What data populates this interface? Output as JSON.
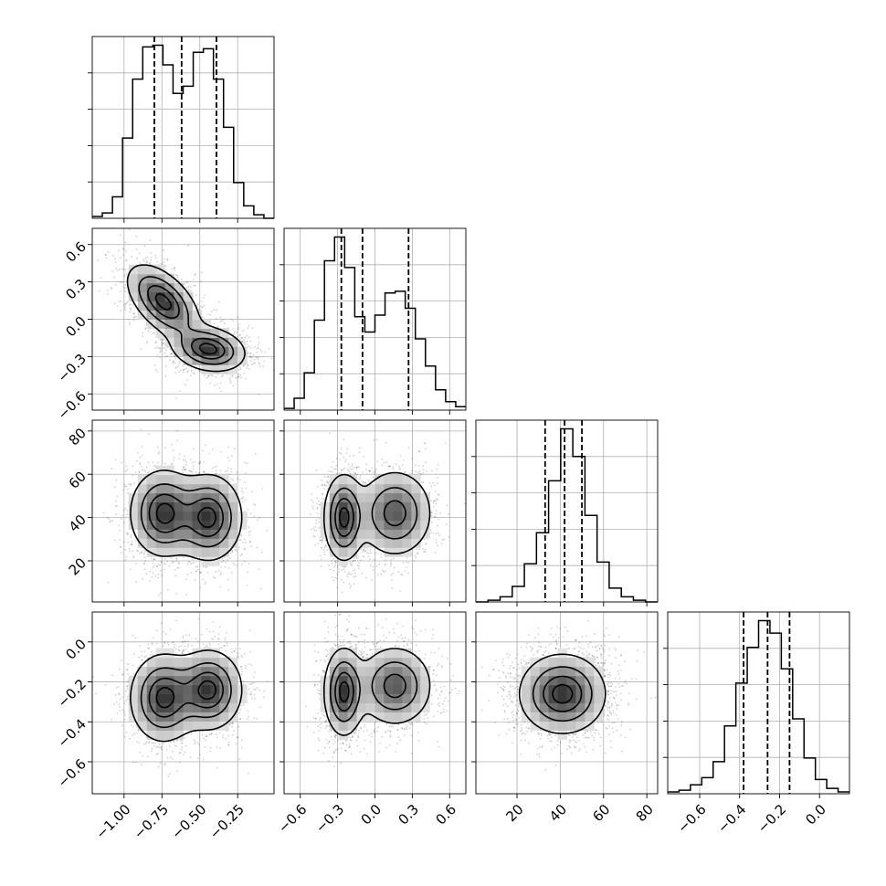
{
  "chart_data": {
    "type": "corner",
    "parameters": [
      {
        "ticks": [
          -1.0,
          -0.75,
          -0.5,
          -0.25
        ],
        "tick_labels": [
          "−1.00",
          "−0.75",
          "−0.50",
          "−0.25"
        ],
        "range": [
          -1.21,
          -0.01
        ],
        "quantiles": [
          -0.8,
          -0.62,
          -0.39
        ]
      },
      {
        "ticks": [
          -0.6,
          -0.3,
          0.0,
          0.3,
          0.6
        ],
        "tick_labels": [
          "−0.6",
          "−0.3",
          "0.0",
          "0.3",
          "0.6"
        ],
        "range": [
          -0.73,
          0.73
        ],
        "quantiles": [
          -0.27,
          -0.1,
          0.27
        ]
      },
      {
        "ticks": [
          20,
          40,
          60,
          80
        ],
        "tick_labels": [
          "20",
          "40",
          "60",
          "80"
        ],
        "range": [
          1,
          85
        ],
        "quantiles": [
          33,
          42,
          50
        ]
      },
      {
        "ticks": [
          -0.6,
          -0.4,
          -0.2,
          0.0
        ],
        "tick_labels": [
          "−0.6",
          "−0.4",
          "−0.2",
          "0.0"
        ],
        "range": [
          -0.76,
          0.15
        ],
        "quantiles": [
          -0.38,
          -0.26,
          -0.15
        ]
      }
    ],
    "histograms": [
      {
        "parameter": 0,
        "counts": [
          1,
          3,
          12,
          45,
          78,
          96,
          97,
          86,
          70,
          74,
          93,
          95,
          78,
          51,
          20,
          7,
          2,
          0
        ]
      },
      {
        "parameter": 1,
        "counts": [
          1,
          7,
          22,
          53,
          88,
          102,
          84,
          55,
          46,
          56,
          69,
          70,
          60,
          42,
          26,
          12,
          5,
          2
        ]
      },
      {
        "parameter": 2,
        "counts": [
          0,
          1,
          3,
          9,
          22,
          40,
          70,
          100,
          84,
          50,
          23,
          8,
          3,
          1,
          0
        ]
      },
      {
        "parameter": 3,
        "counts": [
          1,
          2,
          5,
          9,
          18,
          38,
          62,
          82,
          97,
          90,
          70,
          42,
          20,
          8,
          3,
          1
        ]
      }
    ],
    "densities": [
      {
        "x": 0,
        "y": 1,
        "modes": [
          {
            "mx": -0.74,
            "my": 0.14,
            "sx": 0.12,
            "sy": 0.15,
            "rho": -0.55,
            "w": 0.5
          },
          {
            "mx": -0.44,
            "my": -0.24,
            "sx": 0.12,
            "sy": 0.09,
            "rho": -0.2,
            "w": 0.5
          }
        ]
      },
      {
        "x": 0,
        "y": 2,
        "modes": [
          {
            "mx": -0.74,
            "my": 42,
            "sx": 0.11,
            "sy": 10,
            "rho": 0,
            "w": 0.5
          },
          {
            "mx": -0.44,
            "my": 40,
            "sx": 0.11,
            "sy": 10,
            "rho": 0,
            "w": 0.5
          }
        ]
      },
      {
        "x": 1,
        "y": 2,
        "modes": [
          {
            "mx": -0.25,
            "my": 40,
            "sx": 0.08,
            "sy": 10,
            "rho": 0,
            "w": 0.55
          },
          {
            "mx": 0.16,
            "my": 42,
            "sx": 0.15,
            "sy": 10,
            "rho": 0,
            "w": 0.45
          }
        ]
      },
      {
        "x": 0,
        "y": 3,
        "modes": [
          {
            "mx": -0.74,
            "my": -0.28,
            "sx": 0.11,
            "sy": 0.11,
            "rho": 0,
            "w": 0.5
          },
          {
            "mx": -0.44,
            "my": -0.24,
            "sx": 0.11,
            "sy": 0.1,
            "rho": 0,
            "w": 0.5
          }
        ]
      },
      {
        "x": 1,
        "y": 3,
        "modes": [
          {
            "mx": -0.25,
            "my": -0.25,
            "sx": 0.08,
            "sy": 0.11,
            "rho": 0,
            "w": 0.55
          },
          {
            "mx": 0.16,
            "my": -0.22,
            "sx": 0.15,
            "sy": 0.1,
            "rho": 0,
            "w": 0.45
          }
        ]
      },
      {
        "x": 2,
        "y": 3,
        "modes": [
          {
            "mx": 41,
            "my": -0.26,
            "sx": 10,
            "sy": 0.1,
            "rho": 0,
            "w": 1.0
          }
        ]
      }
    ],
    "grid": true,
    "legend": "none"
  }
}
